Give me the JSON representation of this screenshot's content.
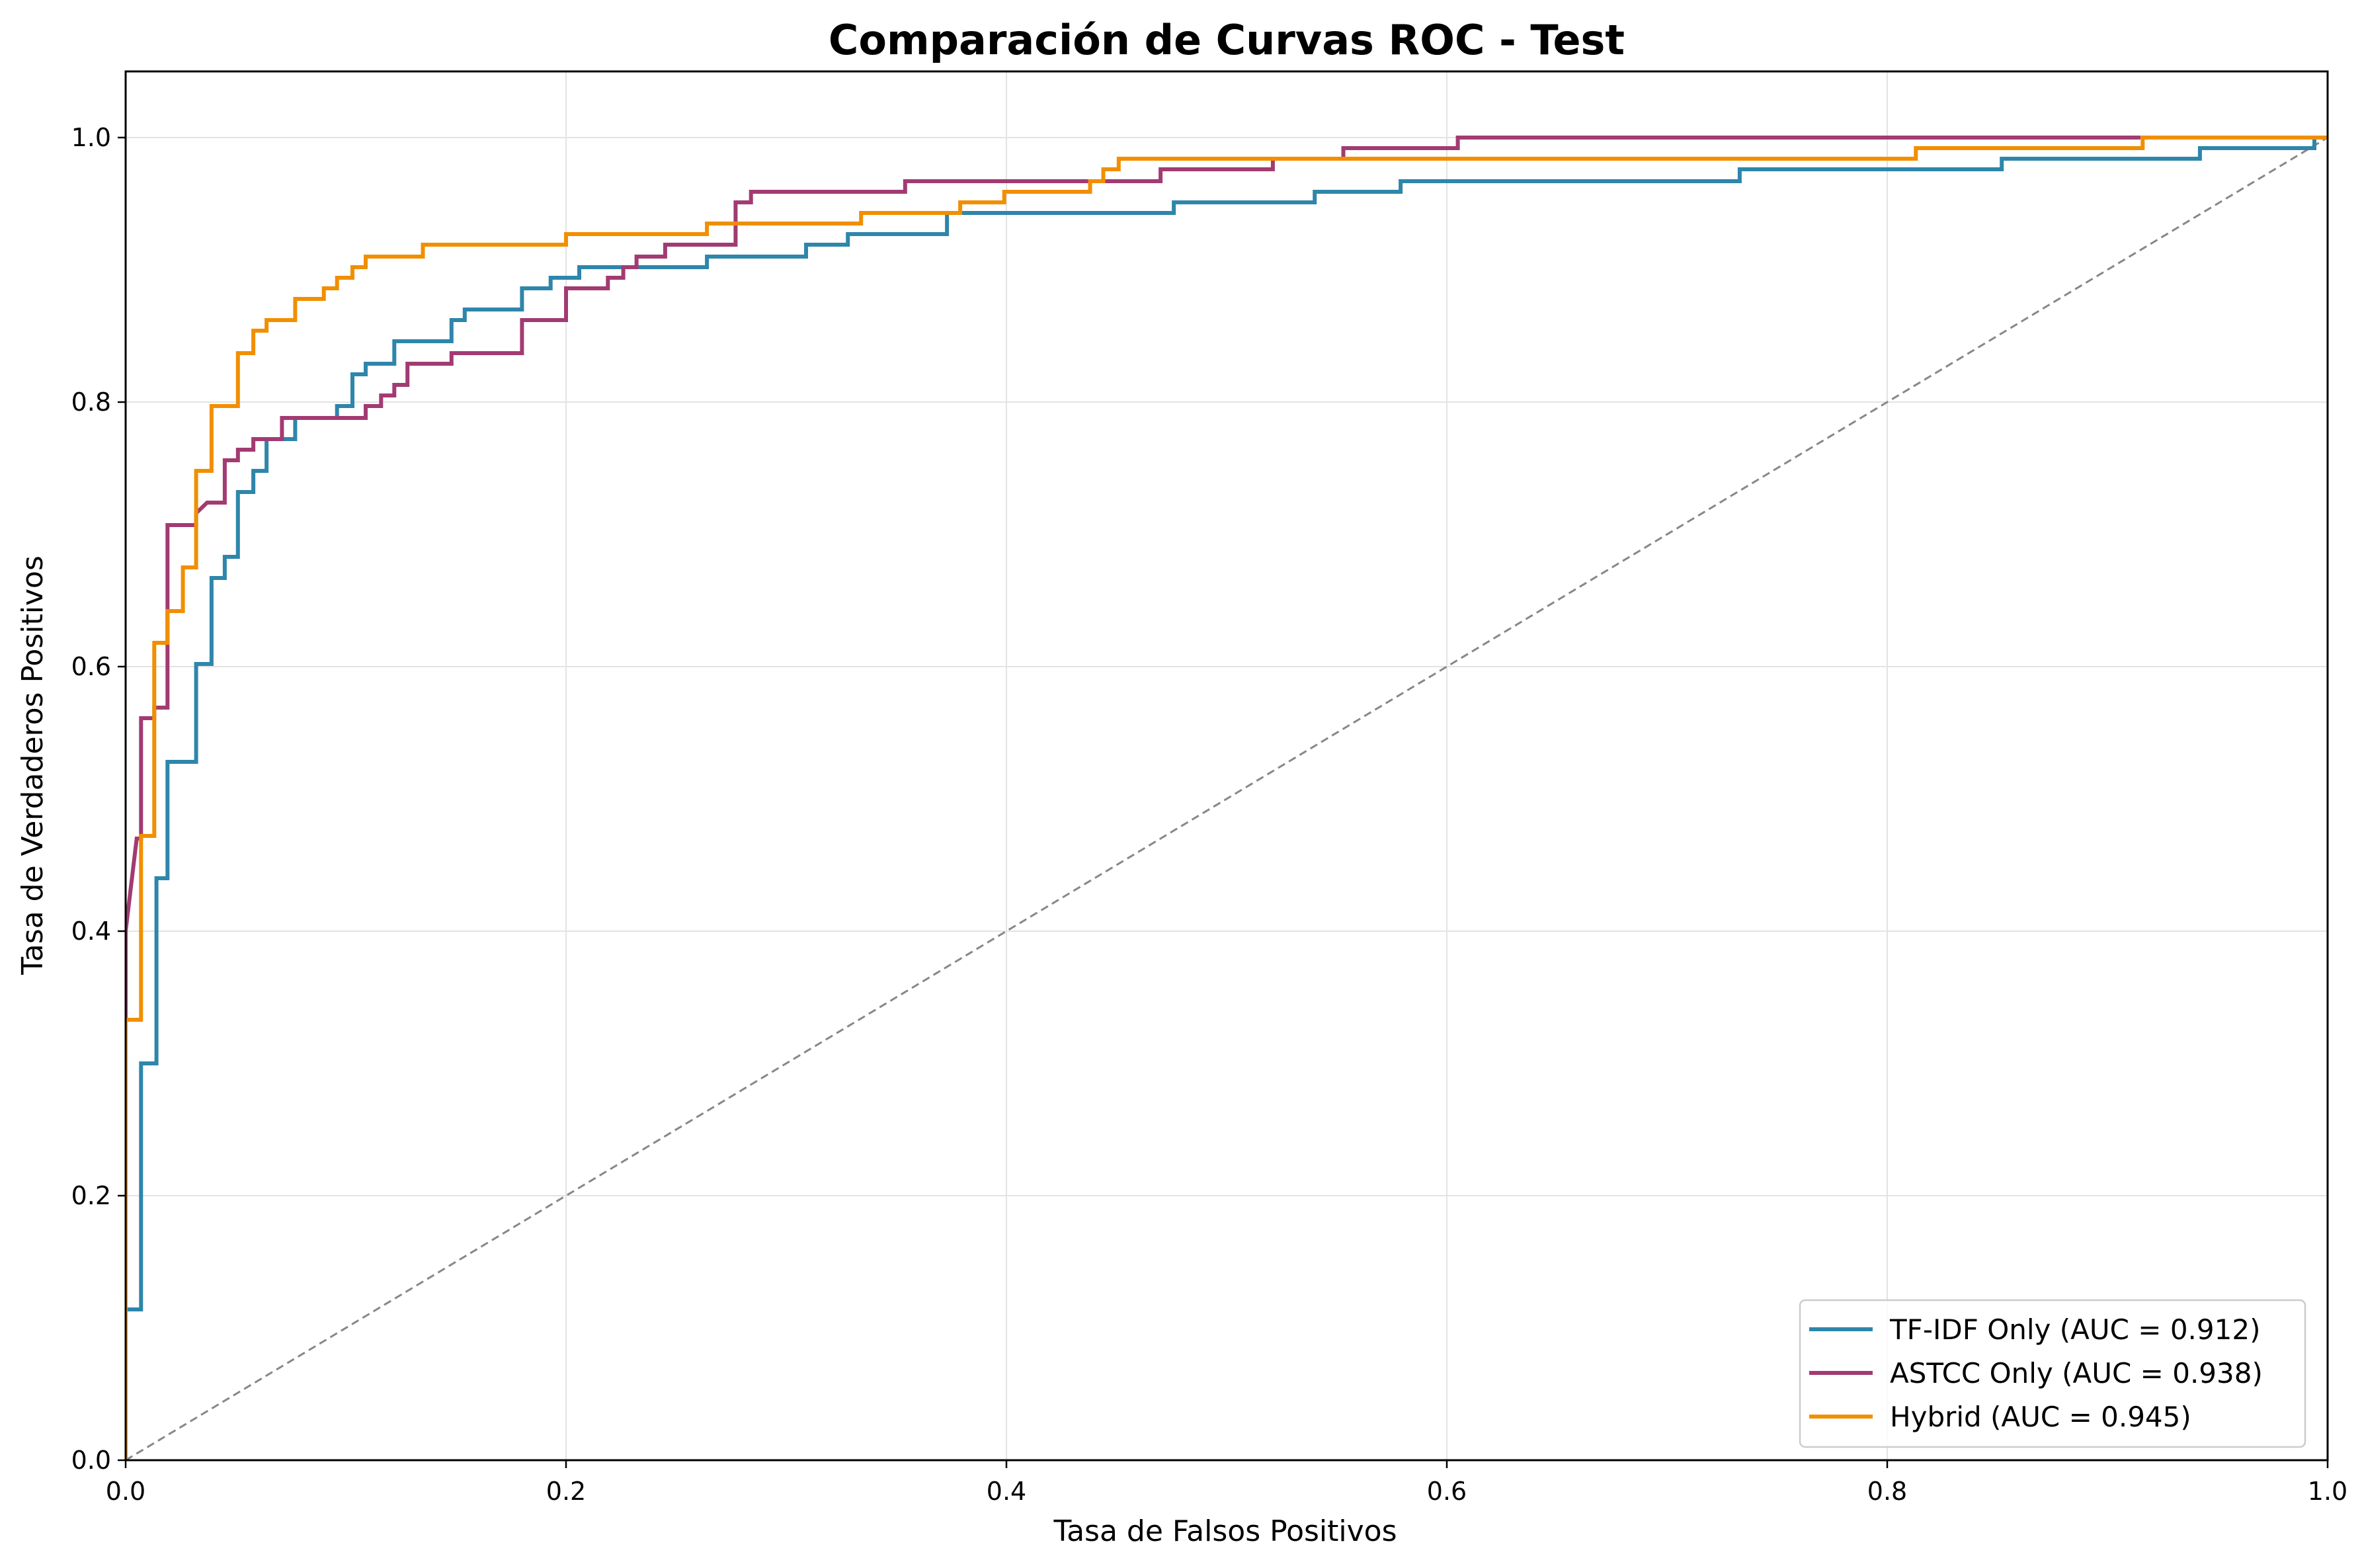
{
  "chart_data": {
    "type": "line",
    "title": "Comparación de Curvas ROC - Test",
    "xlabel": "Tasa de Falsos Positivos",
    "ylabel": "Tasa de Verdaderos Positivos",
    "xlim": [
      0,
      1
    ],
    "ylim": [
      0,
      1.05
    ],
    "xticks": [
      0,
      0.2,
      0.4,
      0.6,
      0.8,
      1.0
    ],
    "xtick_labels": [
      "0.0",
      "0.2",
      "0.4",
      "0.6",
      "0.8",
      "1.0"
    ],
    "yticks": [
      0,
      0.2,
      0.4,
      0.6,
      0.8,
      1.0
    ],
    "ytick_labels": [
      "0.0",
      "0.2",
      "0.4",
      "0.6",
      "0.8",
      "1.0"
    ],
    "grid": true,
    "legend_position": "lower-right",
    "series": [
      {
        "name": "TF-IDF Only (AUC = 0.912)",
        "color": "#2E86AB",
        "points": [
          [
            0,
            0
          ],
          [
            0,
            0.114
          ],
          [
            0.007,
            0.114
          ],
          [
            0.007,
            0.3
          ],
          [
            0.014,
            0.3
          ],
          [
            0.014,
            0.44
          ],
          [
            0.019,
            0.44
          ],
          [
            0.019,
            0.528
          ],
          [
            0.032,
            0.528
          ],
          [
            0.032,
            0.602
          ],
          [
            0.039,
            0.602
          ],
          [
            0.039,
            0.667
          ],
          [
            0.045,
            0.667
          ],
          [
            0.045,
            0.683
          ],
          [
            0.051,
            0.683
          ],
          [
            0.051,
            0.732
          ],
          [
            0.058,
            0.732
          ],
          [
            0.058,
            0.748
          ],
          [
            0.064,
            0.748
          ],
          [
            0.064,
            0.772
          ],
          [
            0.077,
            0.772
          ],
          [
            0.077,
            0.788
          ],
          [
            0.096,
            0.788
          ],
          [
            0.096,
            0.797
          ],
          [
            0.103,
            0.797
          ],
          [
            0.103,
            0.821
          ],
          [
            0.109,
            0.821
          ],
          [
            0.109,
            0.829
          ],
          [
            0.122,
            0.829
          ],
          [
            0.122,
            0.846
          ],
          [
            0.148,
            0.846
          ],
          [
            0.148,
            0.862
          ],
          [
            0.154,
            0.862
          ],
          [
            0.154,
            0.87
          ],
          [
            0.18,
            0.87
          ],
          [
            0.18,
            0.886
          ],
          [
            0.193,
            0.886
          ],
          [
            0.193,
            0.894
          ],
          [
            0.206,
            0.894
          ],
          [
            0.206,
            0.902
          ],
          [
            0.264,
            0.902
          ],
          [
            0.264,
            0.91
          ],
          [
            0.309,
            0.91
          ],
          [
            0.309,
            0.919
          ],
          [
            0.328,
            0.919
          ],
          [
            0.328,
            0.927
          ],
          [
            0.373,
            0.927
          ],
          [
            0.373,
            0.943
          ],
          [
            0.476,
            0.943
          ],
          [
            0.476,
            0.951
          ],
          [
            0.54,
            0.951
          ],
          [
            0.54,
            0.959
          ],
          [
            0.579,
            0.959
          ],
          [
            0.579,
            0.967
          ],
          [
            0.733,
            0.967
          ],
          [
            0.733,
            0.976
          ],
          [
            0.852,
            0.976
          ],
          [
            0.852,
            0.984
          ],
          [
            0.942,
            0.984
          ],
          [
            0.942,
            0.992
          ],
          [
            0.994,
            0.992
          ],
          [
            0.994,
            1.0
          ],
          [
            1.0,
            1.0
          ]
        ]
      },
      {
        "name": "ASTCC Only (AUC = 0.938)",
        "color": "#A23B72",
        "points": [
          [
            0,
            0
          ],
          [
            0,
            0.4
          ],
          [
            0.005,
            0.47
          ],
          [
            0.007,
            0.47
          ],
          [
            0.007,
            0.561
          ],
          [
            0.013,
            0.561
          ],
          [
            0.013,
            0.569
          ],
          [
            0.019,
            0.569
          ],
          [
            0.019,
            0.707
          ],
          [
            0.032,
            0.707
          ],
          [
            0.032,
            0.716
          ],
          [
            0.037,
            0.724
          ],
          [
            0.045,
            0.724
          ],
          [
            0.045,
            0.756
          ],
          [
            0.051,
            0.756
          ],
          [
            0.051,
            0.764
          ],
          [
            0.058,
            0.764
          ],
          [
            0.058,
            0.772
          ],
          [
            0.071,
            0.772
          ],
          [
            0.071,
            0.788
          ],
          [
            0.109,
            0.788
          ],
          [
            0.109,
            0.797
          ],
          [
            0.116,
            0.797
          ],
          [
            0.116,
            0.805
          ],
          [
            0.122,
            0.805
          ],
          [
            0.122,
            0.813
          ],
          [
            0.128,
            0.813
          ],
          [
            0.128,
            0.829
          ],
          [
            0.148,
            0.829
          ],
          [
            0.148,
            0.837
          ],
          [
            0.18,
            0.837
          ],
          [
            0.18,
            0.862
          ],
          [
            0.2,
            0.862
          ],
          [
            0.2,
            0.886
          ],
          [
            0.219,
            0.886
          ],
          [
            0.219,
            0.894
          ],
          [
            0.226,
            0.894
          ],
          [
            0.226,
            0.902
          ],
          [
            0.232,
            0.902
          ],
          [
            0.232,
            0.91
          ],
          [
            0.245,
            0.91
          ],
          [
            0.245,
            0.919
          ],
          [
            0.277,
            0.919
          ],
          [
            0.277,
            0.951
          ],
          [
            0.284,
            0.951
          ],
          [
            0.284,
            0.959
          ],
          [
            0.354,
            0.959
          ],
          [
            0.354,
            0.967
          ],
          [
            0.444,
            0.967
          ],
          [
            0.444,
            0.967
          ],
          [
            0.47,
            0.967
          ],
          [
            0.47,
            0.976
          ],
          [
            0.521,
            0.976
          ],
          [
            0.521,
            0.984
          ],
          [
            0.553,
            0.984
          ],
          [
            0.553,
            0.992
          ],
          [
            0.605,
            0.992
          ],
          [
            0.605,
            1.0
          ],
          [
            0.915,
            1.0
          ]
        ]
      },
      {
        "name": "Hybrid (AUC = 0.945)",
        "color": "#F18F01",
        "points": [
          [
            0,
            0
          ],
          [
            0,
            0.333
          ],
          [
            0.007,
            0.333
          ],
          [
            0.007,
            0.472
          ],
          [
            0.013,
            0.472
          ],
          [
            0.013,
            0.618
          ],
          [
            0.019,
            0.618
          ],
          [
            0.019,
            0.642
          ],
          [
            0.026,
            0.642
          ],
          [
            0.026,
            0.675
          ],
          [
            0.032,
            0.675
          ],
          [
            0.032,
            0.748
          ],
          [
            0.039,
            0.748
          ],
          [
            0.039,
            0.797
          ],
          [
            0.051,
            0.797
          ],
          [
            0.051,
            0.837
          ],
          [
            0.058,
            0.837
          ],
          [
            0.058,
            0.854
          ],
          [
            0.064,
            0.854
          ],
          [
            0.064,
            0.862
          ],
          [
            0.077,
            0.862
          ],
          [
            0.077,
            0.878
          ],
          [
            0.09,
            0.878
          ],
          [
            0.09,
            0.886
          ],
          [
            0.096,
            0.886
          ],
          [
            0.096,
            0.894
          ],
          [
            0.103,
            0.894
          ],
          [
            0.103,
            0.902
          ],
          [
            0.109,
            0.902
          ],
          [
            0.109,
            0.91
          ],
          [
            0.135,
            0.91
          ],
          [
            0.135,
            0.919
          ],
          [
            0.2,
            0.919
          ],
          [
            0.2,
            0.927
          ],
          [
            0.264,
            0.927
          ],
          [
            0.264,
            0.935
          ],
          [
            0.334,
            0.935
          ],
          [
            0.334,
            0.943
          ],
          [
            0.379,
            0.943
          ],
          [
            0.379,
            0.951
          ],
          [
            0.399,
            0.951
          ],
          [
            0.399,
            0.959
          ],
          [
            0.438,
            0.959
          ],
          [
            0.438,
            0.967
          ],
          [
            0.444,
            0.967
          ],
          [
            0.444,
            0.976
          ],
          [
            0.451,
            0.976
          ],
          [
            0.451,
            0.984
          ],
          [
            0.813,
            0.984
          ],
          [
            0.813,
            0.992
          ],
          [
            0.916,
            0.992
          ],
          [
            0.916,
            1.0
          ],
          [
            1.0,
            1.0
          ]
        ]
      },
      {
        "name": "",
        "color": "#888888",
        "dashed": true,
        "points": [
          [
            0,
            0
          ],
          [
            1,
            1
          ]
        ]
      }
    ]
  }
}
